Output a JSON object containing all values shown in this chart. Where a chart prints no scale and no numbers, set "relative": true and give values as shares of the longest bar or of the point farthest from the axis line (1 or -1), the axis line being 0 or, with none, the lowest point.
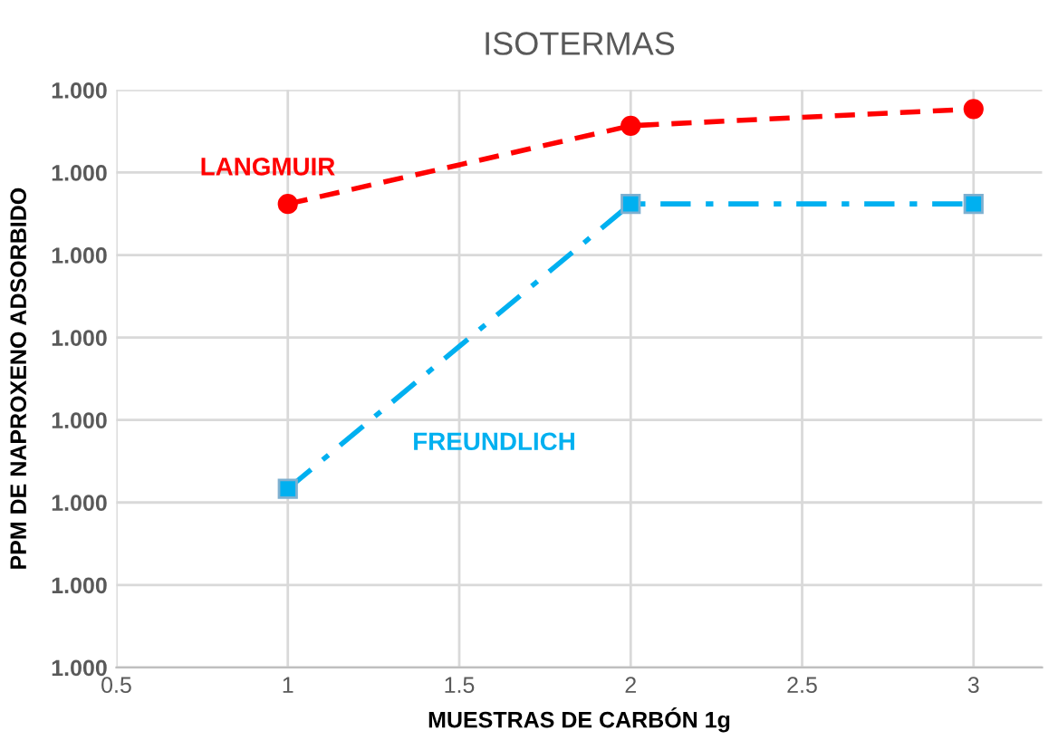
{
  "chart_data": {
    "type": "line",
    "title": "ISOTERMAS",
    "xlabel": "MUESTRAS DE CARBÓN 1g",
    "ylabel": "PPM DE NAPROXENO ADSORBIDO",
    "x": [
      1,
      2,
      3
    ],
    "series": [
      {
        "name": "LANGMUIR",
        "color": "#ff0000",
        "values": [
          0.83,
          0.97,
          1.0
        ],
        "marker": "circle",
        "line_style": "dashed"
      },
      {
        "name": "FREUNDLICH",
        "color": "#00b0f0",
        "values": [
          0.32,
          0.83,
          0.83
        ],
        "marker": "square",
        "line_style": "dashdot"
      }
    ],
    "relative": true,
    "xlim": [
      0.5,
      3.2
    ],
    "xticks": [
      0.5,
      1,
      1.5,
      2,
      2.5,
      3
    ],
    "annotations": [
      "1.000",
      "1.000",
      "1.000",
      "1.000",
      "1.000",
      "1.000",
      "1.000",
      "1.000"
    ],
    "grid": true,
    "legend": false
  }
}
